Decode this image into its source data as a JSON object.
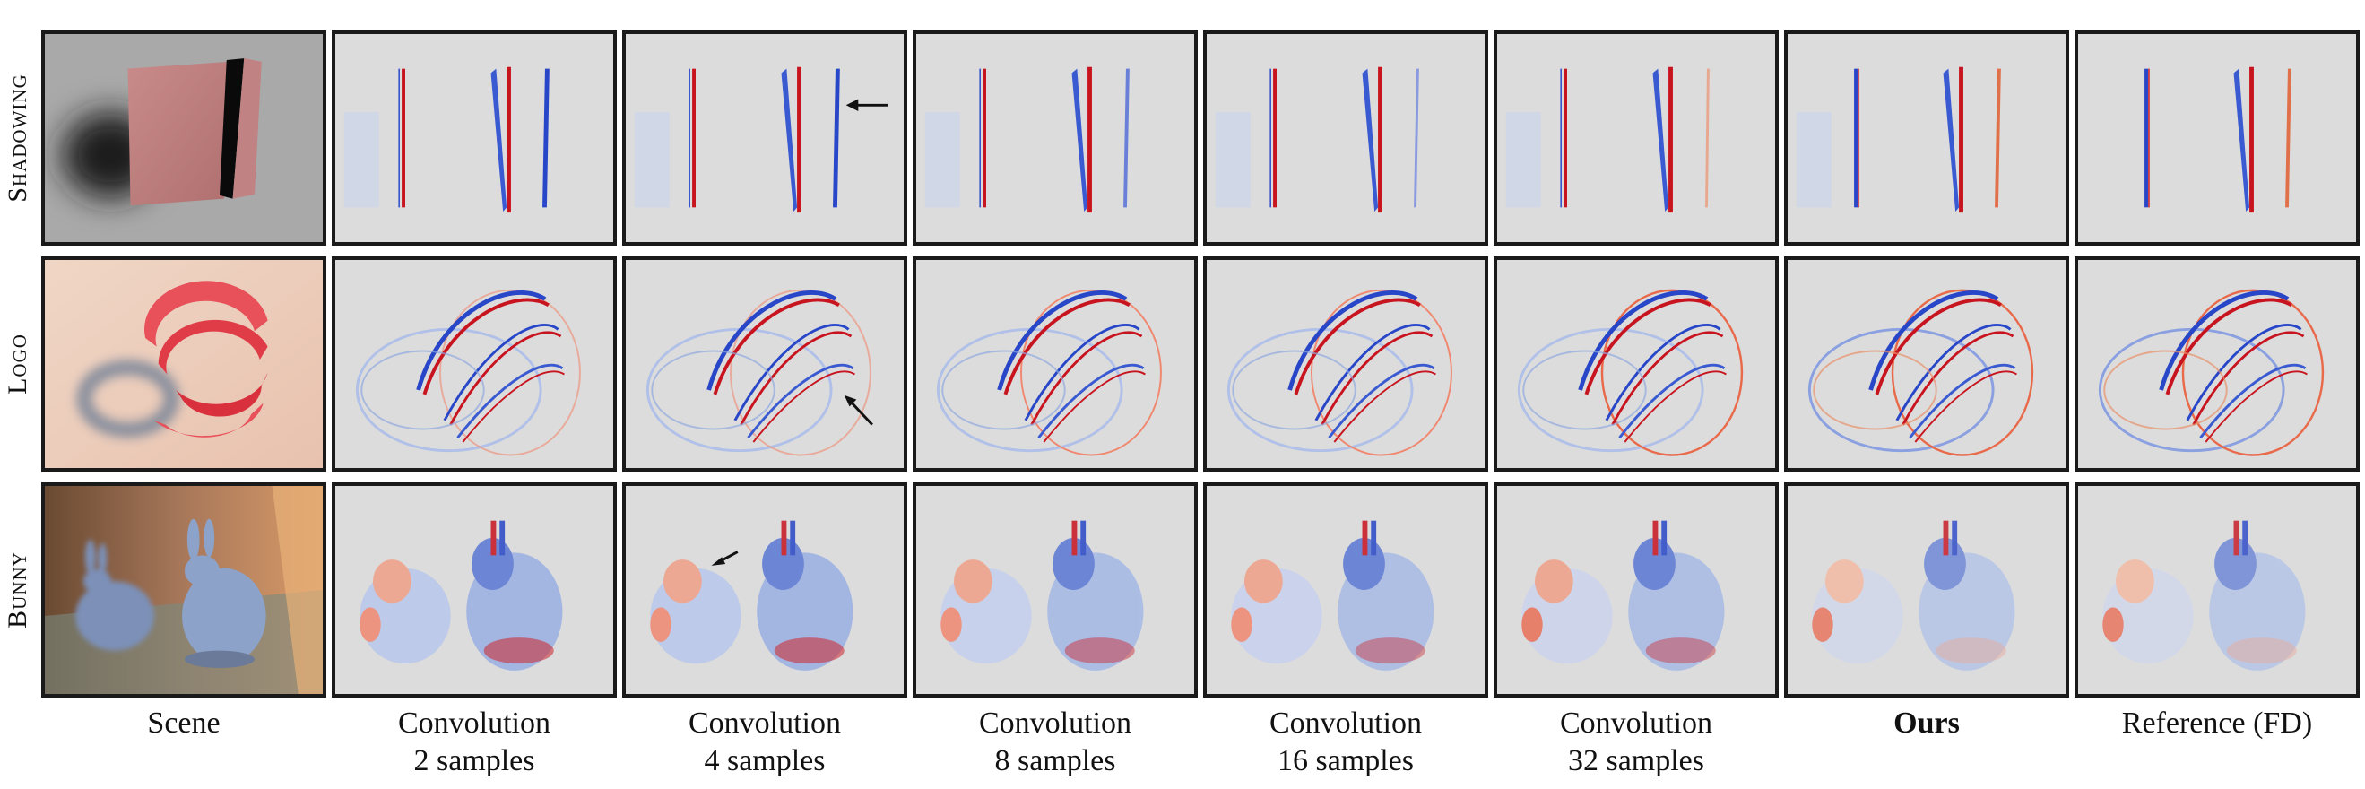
{
  "rows": [
    {
      "label": "Shadowing"
    },
    {
      "label": "Logo"
    },
    {
      "label": "Bunny"
    }
  ],
  "columns": [
    {
      "line1": "Scene",
      "line2": ""
    },
    {
      "line1": "Convolution",
      "line2": "2 samples"
    },
    {
      "line1": "Convolution",
      "line2": "4 samples"
    },
    {
      "line1": "Convolution",
      "line2": "8 samples"
    },
    {
      "line1": "Convolution",
      "line2": "16 samples"
    },
    {
      "line1": "Convolution",
      "line2": "32 samples"
    },
    {
      "line1": "Ours",
      "line2": ""
    },
    {
      "line1": "Reference (FD)",
      "line2": ""
    }
  ],
  "colors": {
    "background": "#dcdcdc",
    "positive": "#c8141e",
    "negative": "#2846c8",
    "border": "#1a1a1a"
  }
}
